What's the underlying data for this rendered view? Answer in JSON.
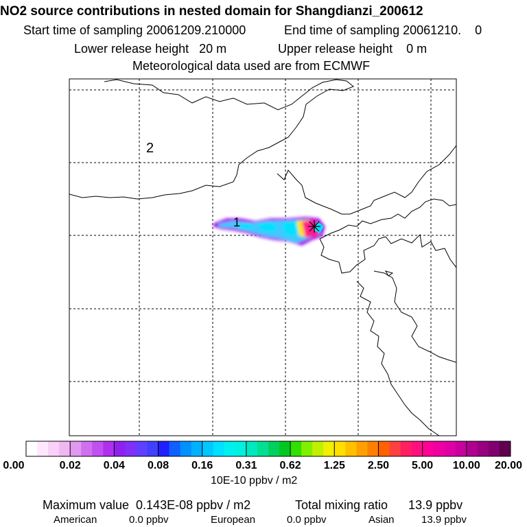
{
  "header": {
    "title": "NO2 source contributions in nested domain for Shangdianzi_200612",
    "start_label": "Start time of sampling 20061209.210000",
    "end_label": "End time of sampling 20061210.    0",
    "lower_label": "Lower release height   20 m",
    "upper_label": "Upper release height    0 m",
    "met_label": "Meteorological data used are from ECMWF"
  },
  "map": {
    "region_labels": [
      "2",
      "1"
    ],
    "colors": {
      "plume_core": "#ff1a8c",
      "plume_mid": "#00e0ff",
      "plume_edge": "#a020f0",
      "plume_low": "#40c8ff",
      "plume_yellow": "#ffe000",
      "grid": "#000000"
    }
  },
  "colorbar": {
    "tick_labels": [
      "0.00",
      "0.02",
      "0.04",
      "0.08",
      "0.16",
      "0.31",
      "0.62",
      "1.25",
      "2.50",
      "5.00",
      "10.00",
      "20.00"
    ],
    "unit": "10E-10 ppbv / m2",
    "colors": [
      "#ffffff",
      "#ffe8ff",
      "#f8d0f8",
      "#f0b8f0",
      "#e098f0",
      "#d070f0",
      "#c050f0",
      "#b030f0",
      "#9020f0",
      "#8030f8",
      "#6040ff",
      "#4040ff",
      "#2020ff",
      "#1060ff",
      "#0090ff",
      "#00b0ff",
      "#00c8ff",
      "#00e0ff",
      "#00f0f0",
      "#00f0e0",
      "#00e8c0",
      "#00e090",
      "#00d060",
      "#00c820",
      "#30e000",
      "#80f000",
      "#c0f000",
      "#f0f000",
      "#ffe000",
      "#ffc000",
      "#ffa000",
      "#ff8000",
      "#ff6000",
      "#ff4040",
      "#ff2060",
      "#ff1080",
      "#ff0099",
      "#f000a0",
      "#e000a8",
      "#c8009c",
      "#b00090",
      "#980080",
      "#800070",
      "#600050"
    ]
  },
  "stats": {
    "max_label": "Maximum value  0.143E-08 ppbv / m2",
    "total_label": "Total mixing ratio      13.9 ppbv",
    "american_label": "American",
    "american_value": "0.0 ppbv",
    "european_label": "European",
    "european_value": "0.0 ppbv",
    "asian_label": "Asian",
    "asian_value": "13.9 ppbv"
  }
}
